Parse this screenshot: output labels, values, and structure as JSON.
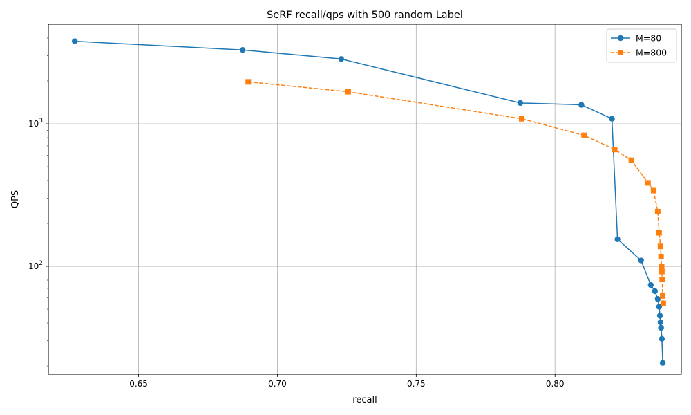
{
  "chart_data": {
    "type": "line",
    "title": "SeRF recall/qps with 500 random Label",
    "xlabel": "recall",
    "ylabel": "QPS",
    "xlim": [
      0.6175,
      0.8455
    ],
    "ylim": [
      17.5,
      5000
    ],
    "yscale": "log",
    "grid": true,
    "legend": "top-right",
    "x_ticks": [
      {
        "value": 0.65,
        "label": "0.65"
      },
      {
        "value": 0.7,
        "label": "0.70"
      },
      {
        "value": 0.75,
        "label": "0.75"
      },
      {
        "value": 0.8,
        "label": "0.80"
      }
    ],
    "y_ticks": [
      {
        "value": 100,
        "base": "10",
        "exp": "2"
      },
      {
        "value": 1000,
        "base": "10",
        "exp": "3"
      }
    ],
    "series": [
      {
        "name": "M=80",
        "color": "#1f77b4",
        "marker": "circle",
        "linestyle": "solid",
        "x": [
          0.627,
          0.6875,
          0.723,
          0.7875,
          0.8095,
          0.8205,
          0.8225,
          0.831,
          0.8345,
          0.836,
          0.837,
          0.8375,
          0.8378,
          0.838,
          0.8382,
          0.8385,
          0.8388
        ],
        "y": [
          3800,
          3300,
          2850,
          1400,
          1360,
          1085,
          155,
          110,
          74,
          67,
          59,
          52,
          45,
          40.5,
          37,
          31,
          21
        ]
      },
      {
        "name": "M=800",
        "color": "#ff7f0e",
        "marker": "square",
        "linestyle": "dashed",
        "x": [
          0.6895,
          0.7255,
          0.788,
          0.8105,
          0.8215,
          0.8275,
          0.8335,
          0.8355,
          0.837,
          0.8375,
          0.838,
          0.8382,
          0.8384,
          0.8385,
          0.8386,
          0.8388,
          0.839
        ],
        "y": [
          1970,
          1680,
          1085,
          830,
          660,
          555,
          385,
          340,
          242,
          172,
          138,
          117,
          100,
          92,
          81,
          62,
          55
        ]
      }
    ]
  }
}
